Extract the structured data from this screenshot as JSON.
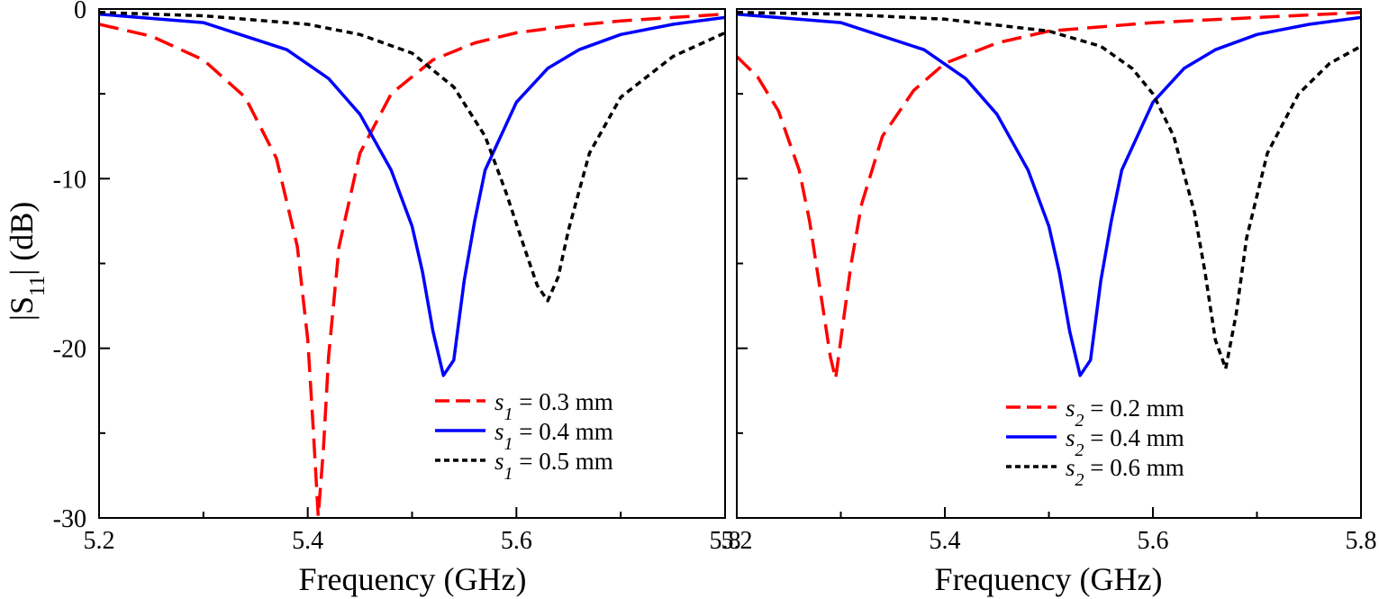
{
  "chart_data": [
    {
      "type": "line",
      "panel": "left",
      "xlabel": "Frequency (GHz)",
      "ylabel_main": "|S",
      "ylabel_sub": "11",
      "ylabel_tail": "| (dB)",
      "xlim": [
        5.2,
        5.8
      ],
      "ylim": [
        -30,
        0
      ],
      "x_ticks": [
        5.2,
        5.4,
        5.6,
        5.8
      ],
      "x_tick_labels": [
        "5.2",
        "5.4",
        "5.6",
        "5.8"
      ],
      "y_ticks": [
        0,
        -10,
        -20,
        -30
      ],
      "y_tick_labels": [
        "0",
        "-10",
        "-20",
        "-30"
      ],
      "legend_position": "bottom-right",
      "series": [
        {
          "symbol": "s",
          "subscript": "1",
          "label_tail": " = 0.3 mm",
          "color": "#ff0000",
          "dash": "dashed",
          "x": [
            5.2,
            5.25,
            5.3,
            5.34,
            5.37,
            5.39,
            5.4,
            5.405,
            5.41,
            5.415,
            5.42,
            5.43,
            5.45,
            5.48,
            5.52,
            5.56,
            5.6,
            5.65,
            5.7,
            5.75,
            5.8
          ],
          "y": [
            -0.9,
            -1.6,
            -3.0,
            -5.2,
            -8.8,
            -14.0,
            -19.5,
            -24.5,
            -29.9,
            -26.0,
            -20.5,
            -14.0,
            -8.5,
            -5.0,
            -3.0,
            -2.0,
            -1.4,
            -1.0,
            -0.7,
            -0.5,
            -0.3
          ]
        },
        {
          "symbol": "s",
          "subscript": "1",
          "label_tail": " = 0.4 mm",
          "color": "#0000ff",
          "dash": "solid",
          "x": [
            5.2,
            5.3,
            5.38,
            5.42,
            5.45,
            5.48,
            5.5,
            5.51,
            5.52,
            5.53,
            5.54,
            5.55,
            5.56,
            5.57,
            5.6,
            5.63,
            5.66,
            5.7,
            5.75,
            5.8
          ],
          "y": [
            -0.3,
            -0.8,
            -2.4,
            -4.1,
            -6.2,
            -9.5,
            -12.8,
            -15.5,
            -19.0,
            -21.6,
            -20.7,
            -16.0,
            -12.5,
            -9.5,
            -5.5,
            -3.5,
            -2.4,
            -1.5,
            -0.9,
            -0.5
          ]
        },
        {
          "symbol": "s",
          "subscript": "1",
          "label_tail": " = 0.5 mm",
          "color": "#000000",
          "dash": "dotted",
          "x": [
            5.2,
            5.3,
            5.4,
            5.45,
            5.5,
            5.54,
            5.57,
            5.59,
            5.61,
            5.62,
            5.63,
            5.64,
            5.65,
            5.67,
            5.7,
            5.75,
            5.8
          ],
          "y": [
            -0.2,
            -0.4,
            -0.9,
            -1.5,
            -2.6,
            -4.6,
            -7.5,
            -10.8,
            -14.5,
            -16.3,
            -17.2,
            -15.8,
            -13.0,
            -8.5,
            -5.2,
            -2.8,
            -1.4
          ]
        }
      ]
    },
    {
      "type": "line",
      "panel": "right",
      "xlabel": "Frequency (GHz)",
      "xlim": [
        5.2,
        5.8
      ],
      "ylim": [
        -30,
        0
      ],
      "x_ticks": [
        5.2,
        5.4,
        5.6,
        5.8
      ],
      "x_tick_labels": [
        "5.2",
        "5.4",
        "5.6",
        "5.8"
      ],
      "legend_position": "bottom-right",
      "series": [
        {
          "symbol": "s",
          "subscript": "2",
          "label_tail": " = 0.2 mm",
          "color": "#ff0000",
          "dash": "dashed",
          "x": [
            5.2,
            5.22,
            5.24,
            5.26,
            5.27,
            5.28,
            5.29,
            5.295,
            5.3,
            5.31,
            5.32,
            5.34,
            5.37,
            5.4,
            5.45,
            5.5,
            5.6,
            5.7,
            5.8
          ],
          "y": [
            -2.8,
            -4.0,
            -6.0,
            -9.5,
            -12.5,
            -16.5,
            -20.5,
            -21.8,
            -19.5,
            -15.0,
            -11.5,
            -7.5,
            -4.8,
            -3.2,
            -2.0,
            -1.3,
            -0.8,
            -0.5,
            -0.2
          ]
        },
        {
          "symbol": "s",
          "subscript": "2",
          "label_tail": " = 0.4 mm",
          "color": "#0000ff",
          "dash": "solid",
          "x": [
            5.2,
            5.3,
            5.38,
            5.42,
            5.45,
            5.48,
            5.5,
            5.51,
            5.52,
            5.53,
            5.54,
            5.55,
            5.56,
            5.57,
            5.6,
            5.63,
            5.66,
            5.7,
            5.75,
            5.8
          ],
          "y": [
            -0.3,
            -0.8,
            -2.4,
            -4.1,
            -6.2,
            -9.5,
            -12.8,
            -15.5,
            -19.0,
            -21.6,
            -20.7,
            -16.0,
            -12.5,
            -9.5,
            -5.5,
            -3.5,
            -2.4,
            -1.5,
            -0.9,
            -0.5
          ]
        },
        {
          "symbol": "s",
          "subscript": "2",
          "label_tail": " = 0.6 mm",
          "color": "#000000",
          "dash": "dotted",
          "x": [
            5.2,
            5.3,
            5.4,
            5.5,
            5.55,
            5.58,
            5.6,
            5.62,
            5.64,
            5.65,
            5.66,
            5.67,
            5.68,
            5.69,
            5.71,
            5.74,
            5.77,
            5.8
          ],
          "y": [
            -0.2,
            -0.3,
            -0.6,
            -1.3,
            -2.2,
            -3.5,
            -5.0,
            -7.5,
            -12.0,
            -15.5,
            -19.5,
            -21.2,
            -18.0,
            -13.5,
            -8.5,
            -5.0,
            -3.2,
            -2.2
          ]
        }
      ]
    }
  ]
}
